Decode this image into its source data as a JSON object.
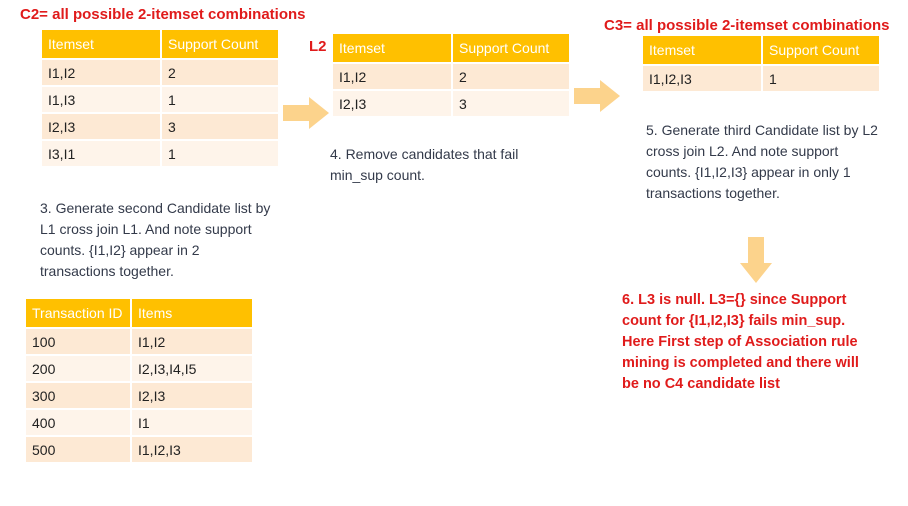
{
  "c2": {
    "title": "C2= all possible 2-itemset combinations",
    "headers": [
      "Itemset",
      "Support Count"
    ],
    "rows": [
      [
        "I1,I2",
        "2"
      ],
      [
        "I1,I3",
        "1"
      ],
      [
        "I2,I3",
        "3"
      ],
      [
        "I3,I1",
        "1"
      ]
    ],
    "note": "3. Generate second Candidate list by L1 cross join L1. And note support counts. {I1,I2} appear in 2 transactions together."
  },
  "l2": {
    "title": "L2",
    "headers": [
      "Itemset",
      "Support Count"
    ],
    "rows": [
      [
        "I1,I2",
        "2"
      ],
      [
        "I2,I3",
        "3"
      ]
    ],
    "note": "4. Remove candidates that fail min_sup count."
  },
  "c3": {
    "title": "C3= all possible 2-itemset combinations",
    "headers": [
      "Itemset",
      "Support Count"
    ],
    "rows": [
      [
        "I1,I2,I3",
        "1"
      ]
    ],
    "note": "5. Generate third Candidate list by L2 cross join L2. And note support counts. {I1,I2,I3} appear in only 1 transactions together."
  },
  "transactions": {
    "headers": [
      "Transaction ID",
      "Items"
    ],
    "rows": [
      [
        "100",
        "I1,I2"
      ],
      [
        "200",
        "I2,I3,I4,I5"
      ],
      [
        "300",
        "I2,I3"
      ],
      [
        "400",
        "I1"
      ],
      [
        "500",
        "I1,I2,I3"
      ]
    ]
  },
  "conclusion": "6. L3 is null. L3={} since Support count for {I1,I2,I3} fails min_sup. Here First step of Association rule mining is completed and there will be no C4 candidate list",
  "colors": {
    "header": "#ffc000",
    "row_dark": "#fde9d4",
    "row_light": "#fef4ea",
    "title_red": "#e01b1b",
    "arrow": "#fcd38c"
  }
}
